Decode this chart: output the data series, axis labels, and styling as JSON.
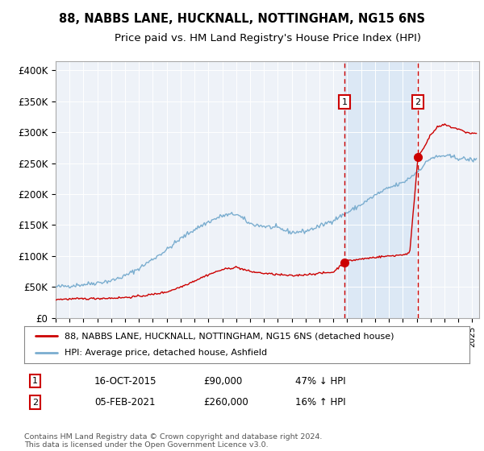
{
  "title": "88, NABBS LANE, HUCKNALL, NOTTINGHAM, NG15 6NS",
  "subtitle": "Price paid vs. HM Land Registry's House Price Index (HPI)",
  "xlim_start": 1995.0,
  "xlim_end": 2025.5,
  "ylim_min": 0,
  "ylim_max": 415000,
  "yticks": [
    0,
    50000,
    100000,
    150000,
    200000,
    250000,
    300000,
    350000,
    400000
  ],
  "ytick_labels": [
    "£0",
    "£50K",
    "£100K",
    "£150K",
    "£200K",
    "£250K",
    "£300K",
    "£350K",
    "£400K"
  ],
  "transaction1_date": 2015.79,
  "transaction1_price": 90000,
  "transaction1_label": "1",
  "transaction2_date": 2021.09,
  "transaction2_price": 260000,
  "transaction2_label": "2",
  "red_line_color": "#cc0000",
  "blue_line_color": "#7aadcf",
  "shaded_color": "#dce8f5",
  "vline_color": "#cc0000",
  "legend1_text": "88, NABBS LANE, HUCKNALL, NOTTINGHAM, NG15 6NS (detached house)",
  "legend2_text": "HPI: Average price, detached house, Ashfield",
  "ann1_date": "16-OCT-2015",
  "ann1_price": "£90,000",
  "ann1_hpi": "47% ↓ HPI",
  "ann2_date": "05-FEB-2021",
  "ann2_price": "£260,000",
  "ann2_hpi": "16% ↑ HPI",
  "footer": "Contains HM Land Registry data © Crown copyright and database right 2024.\nThis data is licensed under the Open Government Licence v3.0.",
  "title_fontsize": 10.5,
  "subtitle_fontsize": 9.5
}
